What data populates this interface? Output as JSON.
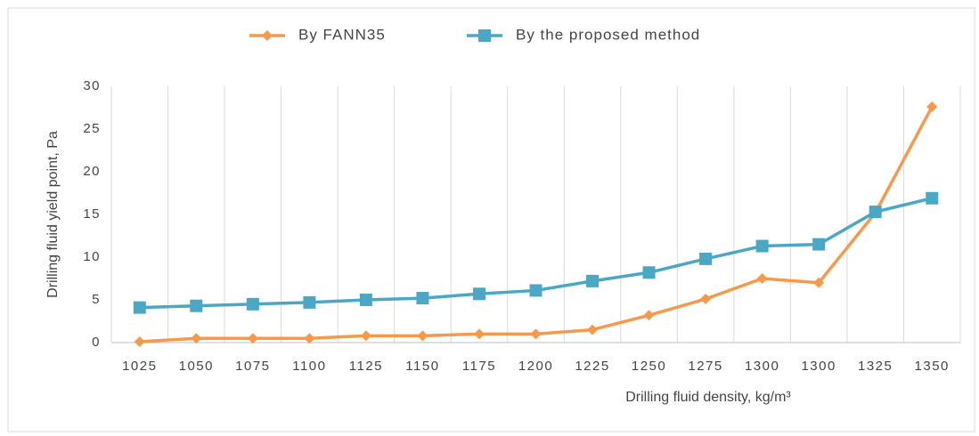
{
  "chart_data": {
    "type": "line",
    "x_label": "Drilling fluid density, kg/m³",
    "y_label": "Drilling fluid yield point, Pa",
    "categories": [
      "1025",
      "1050",
      "1075",
      "1100",
      "1125",
      "1150",
      "1175",
      "1200",
      "1225",
      "1250",
      "1275",
      "1300",
      "1300",
      "1325",
      "1350"
    ],
    "series": [
      {
        "name": "By FANN35",
        "color": "#f59a4a",
        "marker": "diamond",
        "values": [
          0.1,
          0.5,
          0.5,
          0.5,
          0.8,
          0.8,
          1.0,
          1.0,
          1.5,
          3.2,
          5.1,
          7.5,
          7.0,
          15.2,
          27.6
        ]
      },
      {
        "name": "By the proposed method",
        "color": "#4aa8c4",
        "marker": "square",
        "values": [
          4.1,
          4.3,
          4.5,
          4.7,
          5.0,
          5.2,
          5.7,
          6.1,
          7.2,
          8.2,
          9.8,
          11.3,
          11.5,
          15.3,
          16.9
        ]
      }
    ],
    "ylim": [
      0,
      30
    ],
    "yticks": [
      0,
      5,
      10,
      15,
      20,
      25,
      30
    ],
    "grid": "vertical",
    "legend": "top"
  }
}
